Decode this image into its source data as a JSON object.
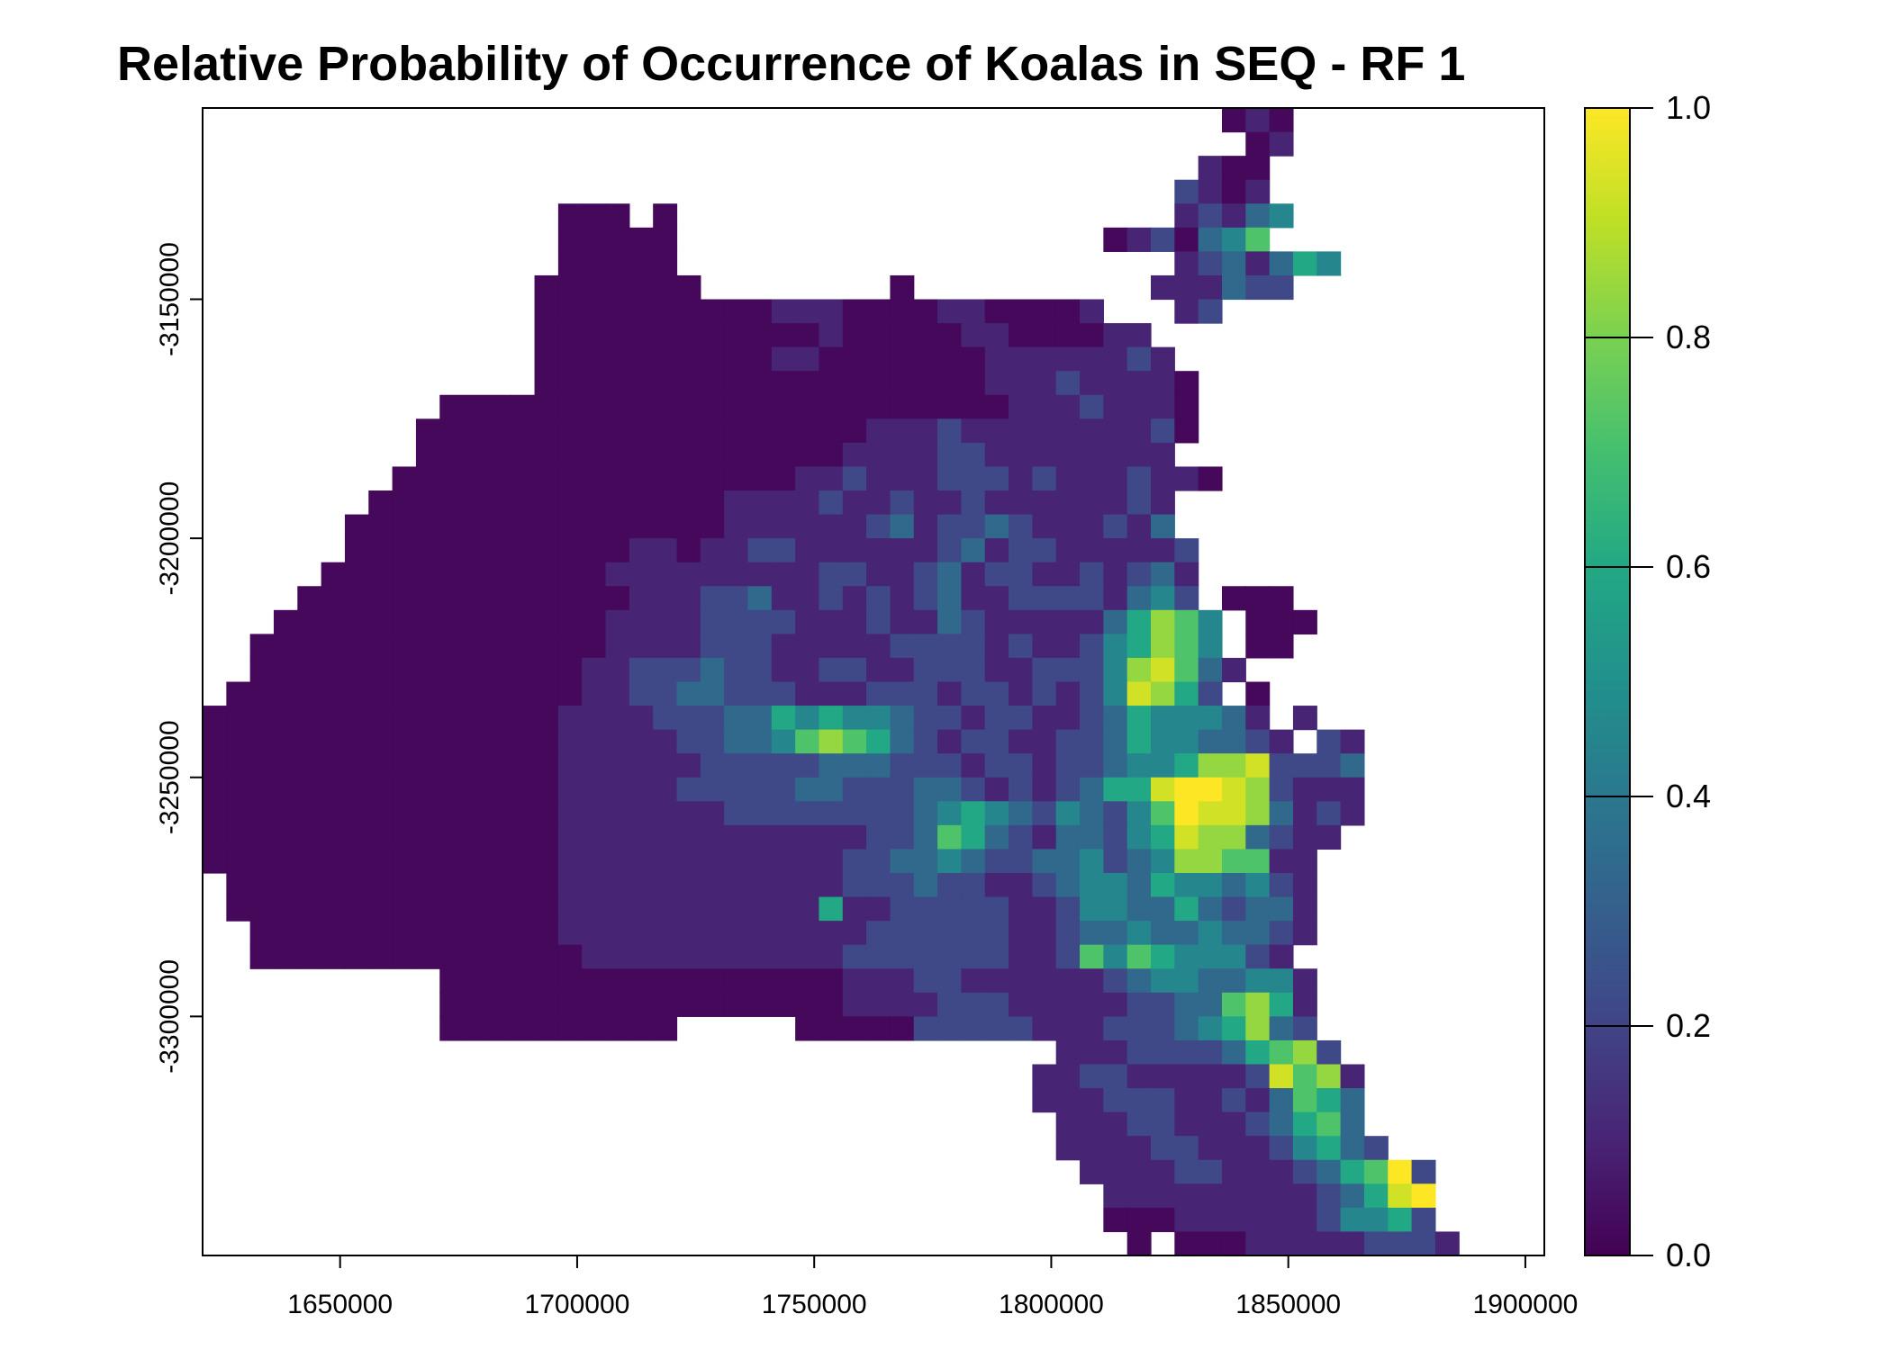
{
  "chart_data": {
    "type": "heatmap",
    "title": "Relative Probability of Occurrence of Koalas in SEQ - RF 1",
    "xlabel": "",
    "ylabel": "",
    "xlim": [
      1621000,
      1904000
    ],
    "ylim": [
      -3350000,
      -3110000
    ],
    "x_ticks": [
      "1650000",
      "1700000",
      "1750000",
      "1800000",
      "1850000",
      "1900000"
    ],
    "y_ticks": [
      "-3150000",
      "-3200000",
      "-3250000",
      "-3300000"
    ],
    "x_tick_values": [
      1650000,
      1700000,
      1750000,
      1800000,
      1850000,
      1900000
    ],
    "y_tick_values": [
      -3150000,
      -3200000,
      -3250000,
      -3300000
    ],
    "cell_size": 5000,
    "grid_origin": [
      1621000,
      -3110000
    ],
    "colorscale": "viridis",
    "colorbar": {
      "range": [
        0,
        1
      ],
      "ticks": [
        "0.0",
        "0.2",
        "0.4",
        "0.6",
        "0.8",
        "1.0"
      ],
      "tick_values": [
        0,
        0.2,
        0.4,
        0.6,
        0.8,
        1.0
      ]
    },
    "grid": false,
    "legend": "colorbar-right",
    "rows": [
      "...........................................ABA..",
      "............................................AB..",
      "..........................................BAA...",
      ".........................................CBAB...",
      "...............AAA.A.....................BCBDE..",
      "...............AAAAA..................ABCADEG...",
      "...............AAAAA.....................BCDBDFE",
      "..............AAAAAAA........A..........BBBDCC..",
      "..............AAAAAAAAAABBBAAAABBAAAAB...BC.....",
      "..............AAAAAAAAAAAABAAAAABBAAAABB........",
      "..............AAAAAAAAAABBAAAAAAABBBBBBCB.......",
      "..............AAAAAAAAAAAAAAAAAAABBBCBBBBA......",
      "..........AAAAAAAAAAAAAAAAAAAAAAAABBBCBBBA......",
      ".........AAAAAAAAAAAAAAAAAAABBBCBBBBBBBBCA......",
      ".........AAAAAAAAAAAAAAAAAABBBBCCBBBBBBBB.......",
      "........AAAAAAAAAAAAAAAAABBCBBBCCCBCBBBCBBA.....",
      ".......AAAAAAAAAAAAAAABBBBCBBCBBCBBBBBBCB.......",
      "......AAAAAAAAAAAAAAAABBBBBBCDBCCDCBBBCBD.......",
      "......AAAAAAAAAAAABBABBCCBBBBBBCDBCCBBBBBC......",
      ".....AAAAAAAAAAAABBBBBBBBBCCBBCDBCCBBCBCDB......",
      "....AAAAAAAAAAAAAABBBCCDBBCBCBCDBBCCCCBDEC.AAA..",
      "...AAAAAAAAAAAAAABBBBCCCCBBBCBBDCBBBBBDFHGE.AAA.",
      "..AAAAAAAAAAAAAAABBBBCCCBBBBBCCCCBCBBCEFHGE.AA..",
      "..AAAAAAAAAAAAAABBCCCDCCBBCCBBCCCBBCCCEHIGDB.....",
      ".AAAAAAAAAAAAAAABBCCDDCCCBBBCCCBCCBCBCEIHFC.A....",
      "AAAAAAAAAAAAAAABBBBCCCDDFEFEEDCCBCCBBCDFEEEDB.B..",
      "AAAAAAAAAAAAAAABBBBBCCDDEGHGFDCBCCBBCCDFEEDDCB.CB",
      "AAAAAAAAAAAAAAABBBBBBCCCCCDDDCCCBCCBCCDEEFHHICCCD",
      "AAAAAAAAAAAAAAABBBBBCCCCCDDCCCDDCBCBCDFFIJJIHCBBB",
      "AAAAAAAAAAAAAAABBBBBBBCCCCCCCCDEFEDCEDCEGJIIHDBCB",
      "AAAAAAAAAAAAAAABBBBBBBBBBBBBCCDGFDCBDDCEFIHHDCBB",
      "AAAAAAAAAAAAAAABBBBBBBBBBBBCCDDEDCCDDECDEHHGGBB..",
      ".AAAAAAAAAAAAAABBBBBBBBBBBBCCCDCCBBCDEEDFEEDECB..",
      ".AAAAAAAAAAAAAABBBBBBBBBBBFBBCCCCCBBCEEDDFDCDDB..",
      "..AAAAAAAAAAAAABBBBBBBBBBBBBCCCCCCBBCDDEDDEDDCB..",
      "..AAAAAAAAAAAAAABBBBBBBBBBBCCCCCCCBBCGEGFEEECB...",
      "..........AAAAAAAAAAAAAAAAABBBCCBBBBBBCDEEDDEEB..",
      "..........AAAAAAAAAAAAAAAAABBBBCCCBBBBBCCDDGHFB..",
      "..........AAAAAAAAAA.....AAAAACCCCCBBBCCCDEFHDC..",
      "....................................BBBCCCCDFGHC..",
      "...................................BBCCBBBBBCIGHB.",
      "...................................BBBCCCBBCBDGFD.",
      "....................................BBBCCBBBCDFGD.",
      "....................................BBBBCCBBBCEFDC.",
      ".....................................BBBBCCBBBCDFGJC",
      "......................................BBBBBBBBBCDFIJ",
      "......................................AAABBBBBBCEEFC.",
      ".......................................A.AAABBBBBCCCB..",
      "...........................................AAAA..."
    ],
    "level_values": {
      "A": 0.02,
      "B": 0.1,
      "C": 0.22,
      "D": 0.34,
      "E": 0.46,
      "F": 0.6,
      "G": 0.72,
      "H": 0.84,
      "I": 0.93,
      "J": 1.0
    }
  }
}
